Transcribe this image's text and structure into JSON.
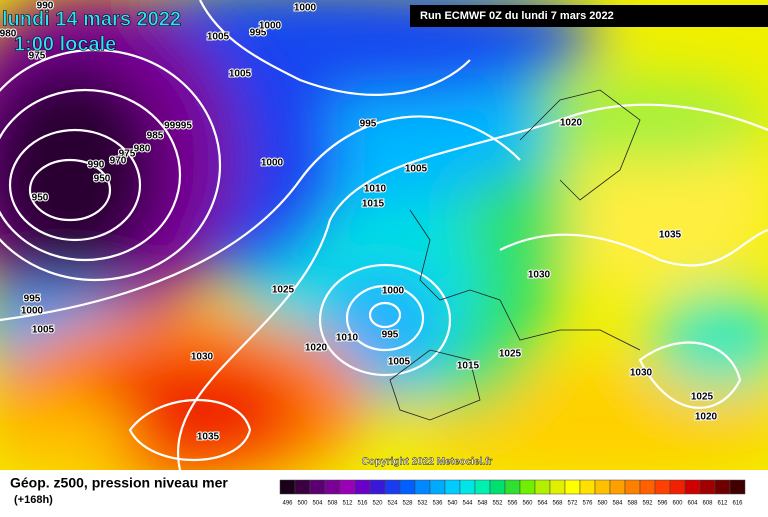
{
  "header": {
    "date": "lundi 14 mars 2022",
    "time": "1:00 locale",
    "run": "Run ECMWF 0Z du lundi 7 mars 2022",
    "copyright": "Copyright 2022 Meteociel.fr"
  },
  "isobar_labels": [
    "990",
    "1000",
    "995",
    "1000",
    "1005",
    "1005",
    "980",
    "975",
    "995",
    "985",
    "99995",
    "975",
    "980",
    "970",
    "990",
    "950",
    "950",
    "1000",
    "1005",
    "1010",
    "1015",
    "1020",
    "1035",
    "1030",
    "1025",
    "995",
    "1000",
    "1005",
    "1000",
    "995",
    "1010",
    "1020",
    "1030",
    "1005",
    "1015",
    "1025",
    "1030",
    "1025",
    "1020",
    "1035"
  ],
  "footer": {
    "title": "Géop. z500, pression niveau mer",
    "lead": "(+168h)"
  },
  "scale": {
    "labels": [
      496,
      500,
      504,
      508,
      512,
      516,
      520,
      524,
      528,
      532,
      536,
      540,
      544,
      548,
      552,
      556,
      560,
      564,
      568,
      572,
      576,
      580,
      584,
      588,
      592,
      596,
      600,
      604,
      608,
      612,
      616
    ],
    "colors": [
      "#1a0018",
      "#3a0040",
      "#5a0070",
      "#7a0096",
      "#9a00b8",
      "#6a00c8",
      "#3a18d8",
      "#1a3cf0",
      "#0060ff",
      "#0088ff",
      "#00aaff",
      "#00ccff",
      "#00e6e6",
      "#00f0b0",
      "#00e070",
      "#30e030",
      "#70f000",
      "#b0f000",
      "#e0f000",
      "#ffff00",
      "#ffe000",
      "#ffc000",
      "#ffa000",
      "#ff8000",
      "#ff6000",
      "#ff4000",
      "#f02000",
      "#d00000",
      "#a00000",
      "#700000",
      "#400000"
    ]
  }
}
